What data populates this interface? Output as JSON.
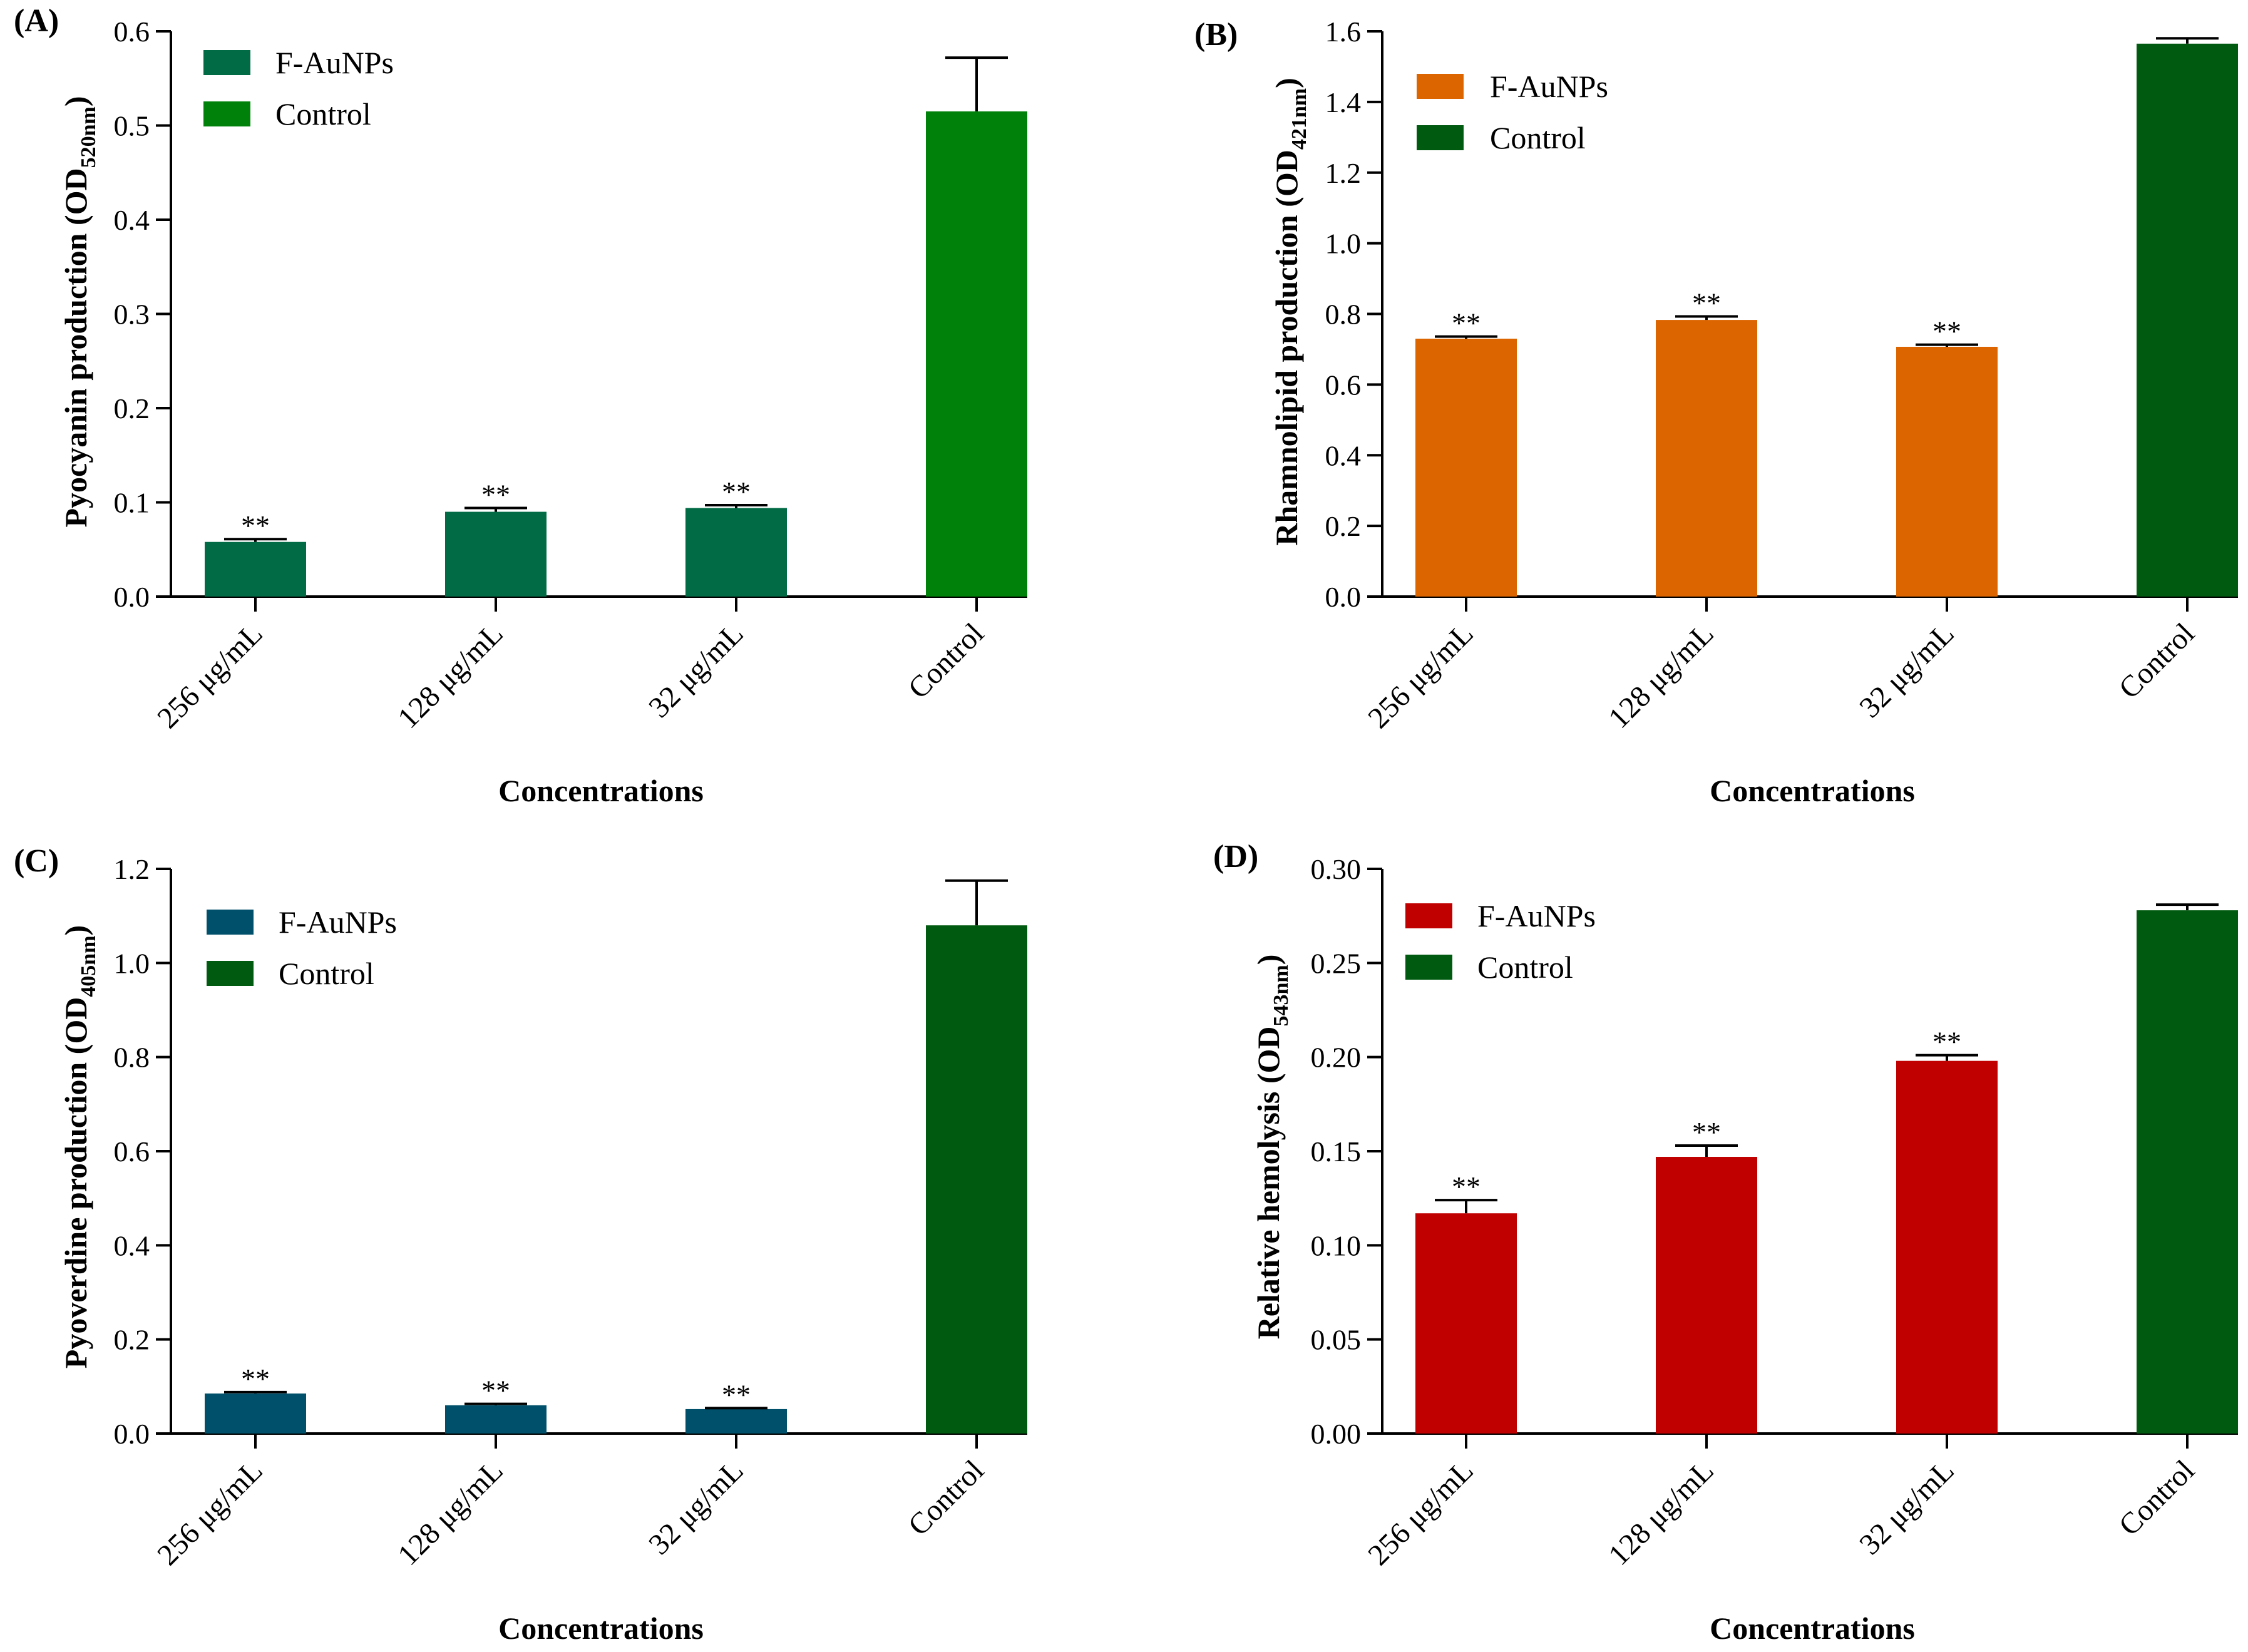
{
  "colors": {
    "fAuNPs": [
      "#006b45",
      "#dd6500",
      "#00506b",
      "#c00000"
    ],
    "control": [
      "#00820a",
      "#005a10",
      "#005a10",
      "#005a10"
    ]
  },
  "chart_data": [
    {
      "type": "bar",
      "panel": "(A)",
      "ylabel_main": "Pyocyanin production (OD",
      "ylabel_sub": "520nm",
      "ylabel_close": ")",
      "xlabel": "Concentrations",
      "categories": [
        "256 μg/mL",
        "128 μg/mL",
        "32 μg/mL",
        "Control"
      ],
      "series": [
        {
          "name": "F-AuNPs",
          "values": [
            0.058,
            0.09,
            0.094,
            null
          ],
          "errors": [
            0.003,
            0.004,
            0.003,
            null
          ],
          "annotations": [
            "**",
            "**",
            "**",
            null
          ]
        },
        {
          "name": "Control",
          "values": [
            null,
            null,
            null,
            0.515
          ],
          "errors": [
            null,
            null,
            null,
            0.057
          ],
          "annotations": [
            null,
            null,
            null,
            null
          ]
        }
      ],
      "ylim": [
        0,
        0.6
      ],
      "yticks": [
        "0.0",
        "0.1",
        "0.2",
        "0.3",
        "0.4",
        "0.5",
        "0.6"
      ],
      "legend_position": "top-left"
    },
    {
      "type": "bar",
      "panel": "(B)",
      "ylabel_main": "Rhamnolipid production (OD",
      "ylabel_sub": "421nm",
      "ylabel_close": ")",
      "xlabel": "Concentrations",
      "categories": [
        "256 μg/mL",
        "128 μg/mL",
        "32 μg/mL",
        "Control"
      ],
      "series": [
        {
          "name": "F-AuNPs",
          "values": [
            0.73,
            0.783,
            0.707,
            null
          ],
          "errors": [
            0.006,
            0.01,
            0.006,
            null
          ],
          "annotations": [
            "**",
            "**",
            "**",
            null
          ]
        },
        {
          "name": "Control",
          "values": [
            null,
            null,
            null,
            1.565
          ],
          "errors": [
            null,
            null,
            null,
            0.015
          ],
          "annotations": [
            null,
            null,
            null,
            null
          ]
        }
      ],
      "ylim": [
        0,
        1.6
      ],
      "yticks": [
        "0.0",
        "0.2",
        "0.4",
        "0.6",
        "0.8",
        "1.0",
        "1.2",
        "1.4",
        "1.6"
      ],
      "legend_position": "top-left"
    },
    {
      "type": "bar",
      "panel": "(C)",
      "ylabel_main": "Pyoverdine production (OD",
      "ylabel_sub": "405nm",
      "ylabel_close": ")",
      "xlabel": "Concentrations",
      "categories": [
        "256 μg/mL",
        "128 μg/mL",
        "32 μg/mL",
        "Control"
      ],
      "series": [
        {
          "name": "F-AuNPs",
          "values": [
            0.085,
            0.06,
            0.052,
            null
          ],
          "errors": [
            0.003,
            0.003,
            0.002,
            null
          ],
          "annotations": [
            "**",
            "**",
            "**",
            null
          ]
        },
        {
          "name": "Control",
          "values": [
            null,
            null,
            null,
            1.08
          ],
          "errors": [
            null,
            null,
            null,
            0.095
          ],
          "annotations": [
            null,
            null,
            null,
            null
          ]
        }
      ],
      "ylim": [
        0,
        1.2
      ],
      "yticks": [
        "0.0",
        "0.2",
        "0.4",
        "0.6",
        "0.8",
        "1.0",
        "1.2"
      ],
      "legend_position": "top-left"
    },
    {
      "type": "bar",
      "panel": "(D)",
      "ylabel_main": "Relative hemolysis (OD",
      "ylabel_sub": "543nm",
      "ylabel_close": ")",
      "xlabel": "Concentrations",
      "categories": [
        "256 μg/mL",
        "128 μg/mL",
        "32 μg/mL",
        "Control"
      ],
      "series": [
        {
          "name": "F-AuNPs",
          "values": [
            0.117,
            0.147,
            0.198,
            null
          ],
          "errors": [
            0.007,
            0.006,
            0.003,
            null
          ],
          "annotations": [
            "**",
            "**",
            "**",
            null
          ]
        },
        {
          "name": "Control",
          "values": [
            null,
            null,
            null,
            0.278
          ],
          "errors": [
            null,
            null,
            null,
            0.003
          ],
          "annotations": [
            null,
            null,
            null,
            null
          ]
        }
      ],
      "ylim": [
        0,
        0.3
      ],
      "yticks": [
        "0.00",
        "0.05",
        "0.10",
        "0.15",
        "0.20",
        "0.25",
        "0.30"
      ],
      "legend_position": "top-left"
    }
  ]
}
